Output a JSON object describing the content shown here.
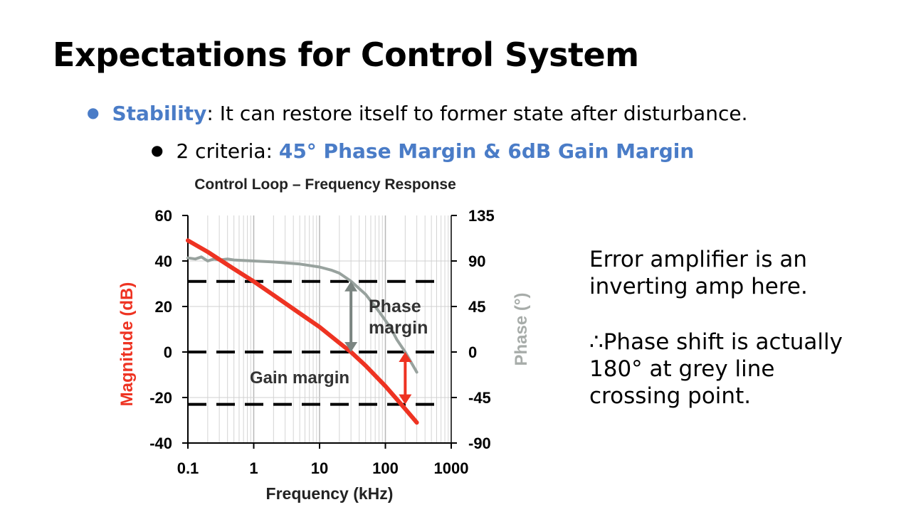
{
  "slide": {
    "title": "Expectations for Control System",
    "bullet1": {
      "term": "Stability",
      "rest": ": It can restore itself to former state after disturbance."
    },
    "bullet2": {
      "lead": "2 criteria: ",
      "highlight": "45° Phase Margin & 6dB Gain Margin"
    },
    "note1": [
      "Error amplifier is an",
      "inverting amp here."
    ],
    "note2": [
      "∴Phase shift is actually",
      "180° at grey line",
      "crossing point."
    ],
    "colors": {
      "accent": "#4472c4",
      "magnitude": "#ee3322",
      "phase": "#98a29e",
      "phase_arrow": "#7b8581"
    }
  },
  "chart_data": {
    "type": "line",
    "title": "Control Loop – Frequency Response",
    "xlabel": "Frequency (kHz)",
    "ylabel": "Magnitude (dB)",
    "y2label": "Phase (°)",
    "x_scale": "log",
    "xlim": [
      0.1,
      1000
    ],
    "ylim": [
      -40,
      60
    ],
    "y2lim": [
      -90,
      135
    ],
    "x_ticks": [
      "0.1",
      "1",
      "10",
      "100",
      "1000"
    ],
    "y_ticks": [
      "60",
      "40",
      "20",
      "0",
      "-20",
      "-40"
    ],
    "y2_ticks": [
      "135",
      "90",
      "45",
      "0",
      "-45",
      "-90"
    ],
    "grid": true,
    "series": [
      {
        "name": "Magnitude (dB)",
        "axis": "left",
        "x": [
          0.1,
          0.2,
          0.5,
          1,
          2,
          5,
          10,
          20,
          30,
          50,
          100,
          200,
          300
        ],
        "y": [
          49,
          44,
          36.5,
          31,
          25,
          17,
          11,
          4,
          0,
          -6,
          -15,
          -25,
          -31
        ]
      },
      {
        "name": "Phase (°)",
        "axis": "right",
        "x": [
          0.1,
          0.13,
          0.16,
          0.2,
          0.25,
          0.3,
          0.4,
          0.5,
          1,
          2,
          5,
          10,
          15,
          20,
          30,
          50,
          80,
          120,
          150,
          200,
          300
        ],
        "y": [
          93,
          92,
          94,
          90,
          92,
          91,
          92,
          91,
          90,
          89,
          87,
          84,
          81,
          78,
          70,
          57,
          40,
          24,
          12,
          0,
          -20
        ]
      }
    ],
    "reference_lines_db": [
      31,
      0,
      -23
    ],
    "annotations": {
      "phase_margin": "Phase\nmargin",
      "gain_margin": "Gain margin"
    }
  }
}
